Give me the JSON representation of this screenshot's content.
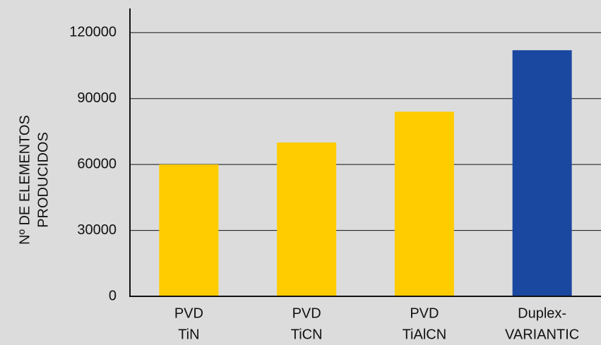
{
  "chart_data": {
    "type": "bar",
    "ylabel": [
      "Nº DE ELEMENTOS",
      "PRODUCIDOS"
    ],
    "categories": [
      [
        "PVD",
        "TiN"
      ],
      [
        "PVD",
        "TiCN"
      ],
      [
        "PVD",
        "TiAlCN"
      ],
      [
        "Duplex-",
        "VARIANTIC"
      ]
    ],
    "values": [
      60000,
      70000,
      84000,
      112000
    ],
    "colors": [
      "#ffcc00",
      "#ffcc00",
      "#ffcc00",
      "#1a47a0"
    ],
    "ylim": [
      0,
      131000
    ],
    "yticks": [
      0,
      30000,
      60000,
      90000,
      120000
    ],
    "grid": true
  }
}
